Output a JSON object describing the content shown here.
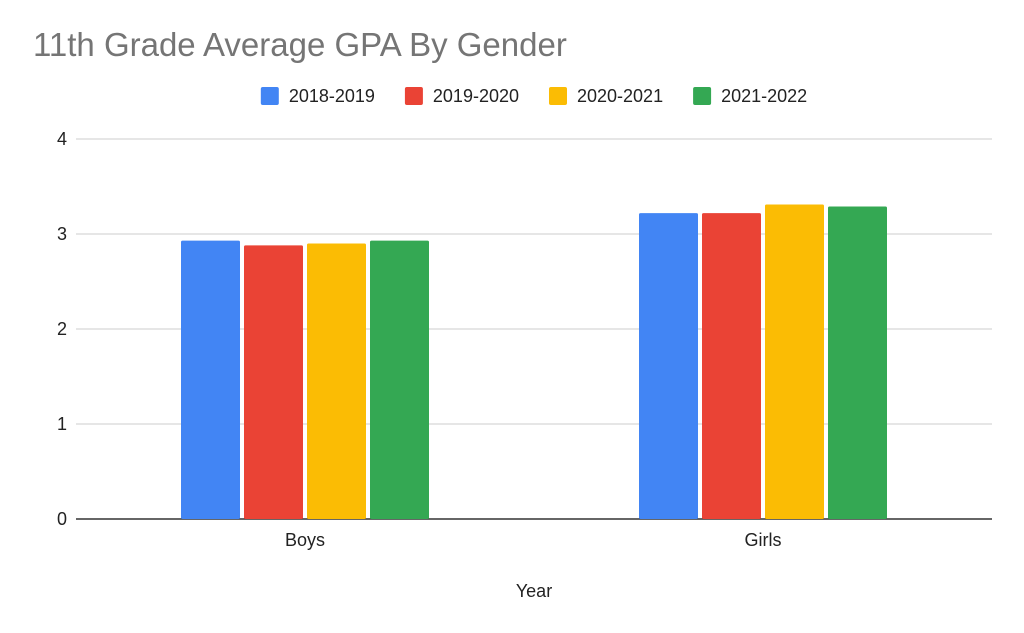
{
  "chart_data": {
    "type": "bar",
    "title": "11th Grade Average GPA By Gender",
    "xlabel": "Year",
    "ylabel": "",
    "categories": [
      "Boys",
      "Girls"
    ],
    "series": [
      {
        "name": "2018-2019",
        "color": "#4285F4",
        "values": [
          2.93,
          3.22
        ]
      },
      {
        "name": "2019-2020",
        "color": "#EA4335",
        "values": [
          2.88,
          3.22
        ]
      },
      {
        "name": "2020-2021",
        "color": "#FBBC04",
        "values": [
          2.9,
          3.31
        ]
      },
      {
        "name": "2021-2022",
        "color": "#34A853",
        "values": [
          2.93,
          3.29
        ]
      }
    ],
    "ylim": [
      0,
      4
    ],
    "yticks": [
      "0",
      "1",
      "2",
      "3",
      "4"
    ],
    "grid": true,
    "legend_position": "top-center"
  }
}
